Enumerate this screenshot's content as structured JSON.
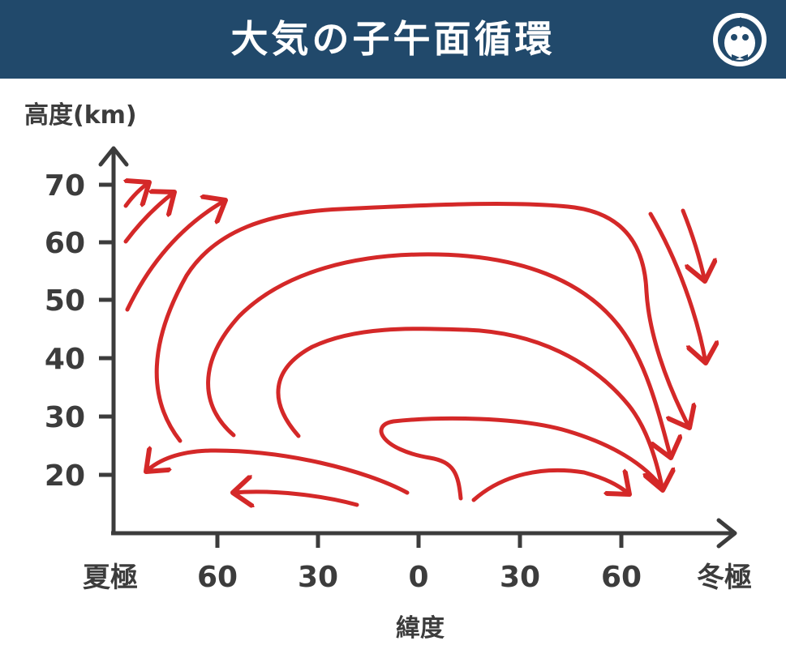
{
  "header": {
    "title": "大気の子午面循環",
    "bg_color": "#21496b",
    "mascot_icon": "penguin-mascot-icon"
  },
  "axes": {
    "y_title": "高度(km)",
    "x_title": "緯度",
    "y_ticks": [
      "20",
      "30",
      "40",
      "50",
      "60",
      "70"
    ],
    "x_ticks": [
      "夏極",
      "60",
      "30",
      "0",
      "30",
      "60",
      "冬極"
    ],
    "axis_color": "#3c3c3c"
  },
  "arrows": {
    "color": "#d42828",
    "description_count": 11
  }
}
